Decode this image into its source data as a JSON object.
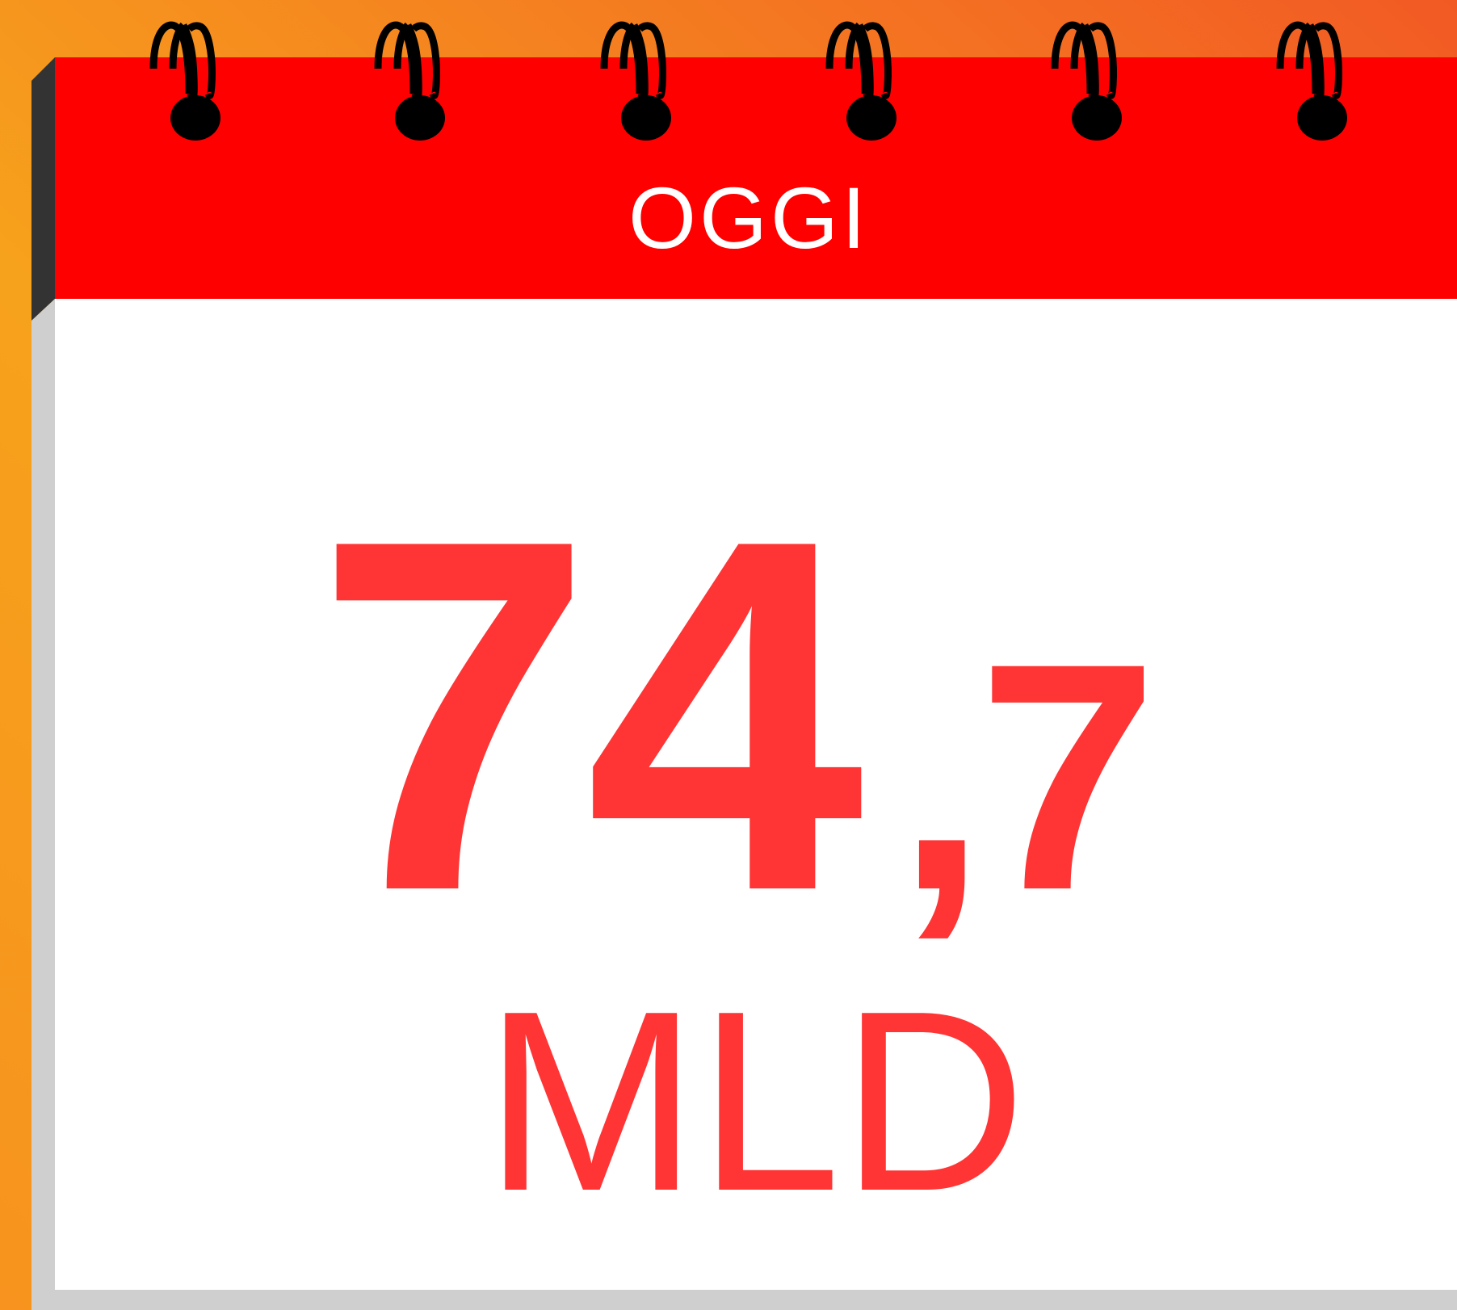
{
  "header": {
    "label": "OGGI"
  },
  "figure": {
    "integer": "74",
    "decimal": ",7",
    "unit": "MLD"
  }
}
